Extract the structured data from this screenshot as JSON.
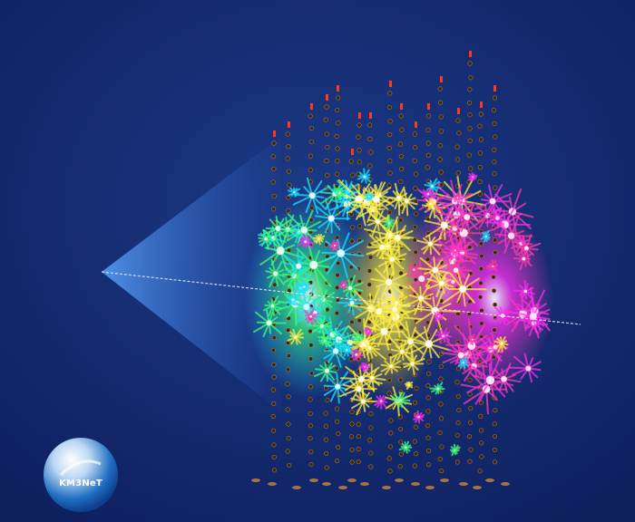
{
  "image": {
    "background_colors": [
      "#1c3a86",
      "#0e1f5e"
    ],
    "neutrino_track_color": "#e8eefc",
    "cone_color": "#5aa8ff",
    "hit_colors": [
      "#19e0ff",
      "#3cff7a",
      "#ffee3c",
      "#ff3ab0",
      "#ff2cf0"
    ],
    "sensor_color": "#3a2a18",
    "top_marker_color": "#ff3a1a"
  },
  "logo": {
    "text": "KM3NeT",
    "icon": "km3net-sphere-logo-icon"
  }
}
